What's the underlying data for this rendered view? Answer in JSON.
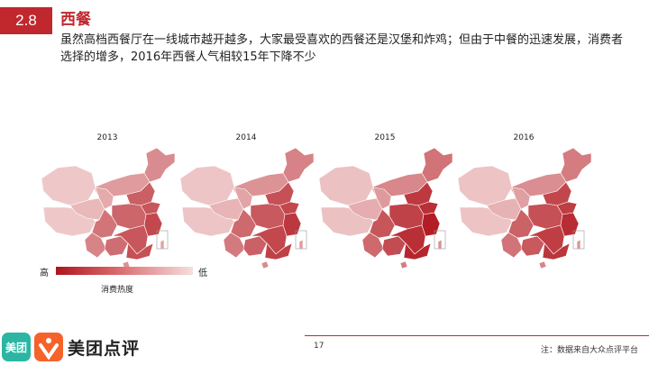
{
  "header": {
    "section_number": "2.8",
    "title": "西餐",
    "subtitle": "虽然高档西餐厅在一线城市越开越多，大家最受喜欢的西餐还是汉堡和炸鸡；但由于中餐的迅速发展，消费者选择的增多，2016年西餐人气相较15年下降不少"
  },
  "maps": [
    {
      "year": "2013",
      "intensity": 0.35
    },
    {
      "year": "2014",
      "intensity": 0.5
    },
    {
      "year": "2015",
      "intensity": 0.75
    },
    {
      "year": "2016",
      "intensity": 0.6
    }
  ],
  "legend": {
    "high_label": "高",
    "low_label": "低",
    "title": "消费热度",
    "colors": [
      "#b0141c",
      "#f6dede"
    ]
  },
  "footer": {
    "page_number": "17",
    "source": "注：数据来自大众点评平台",
    "logo_box_text": "美团",
    "logo_text": "美团点评"
  }
}
